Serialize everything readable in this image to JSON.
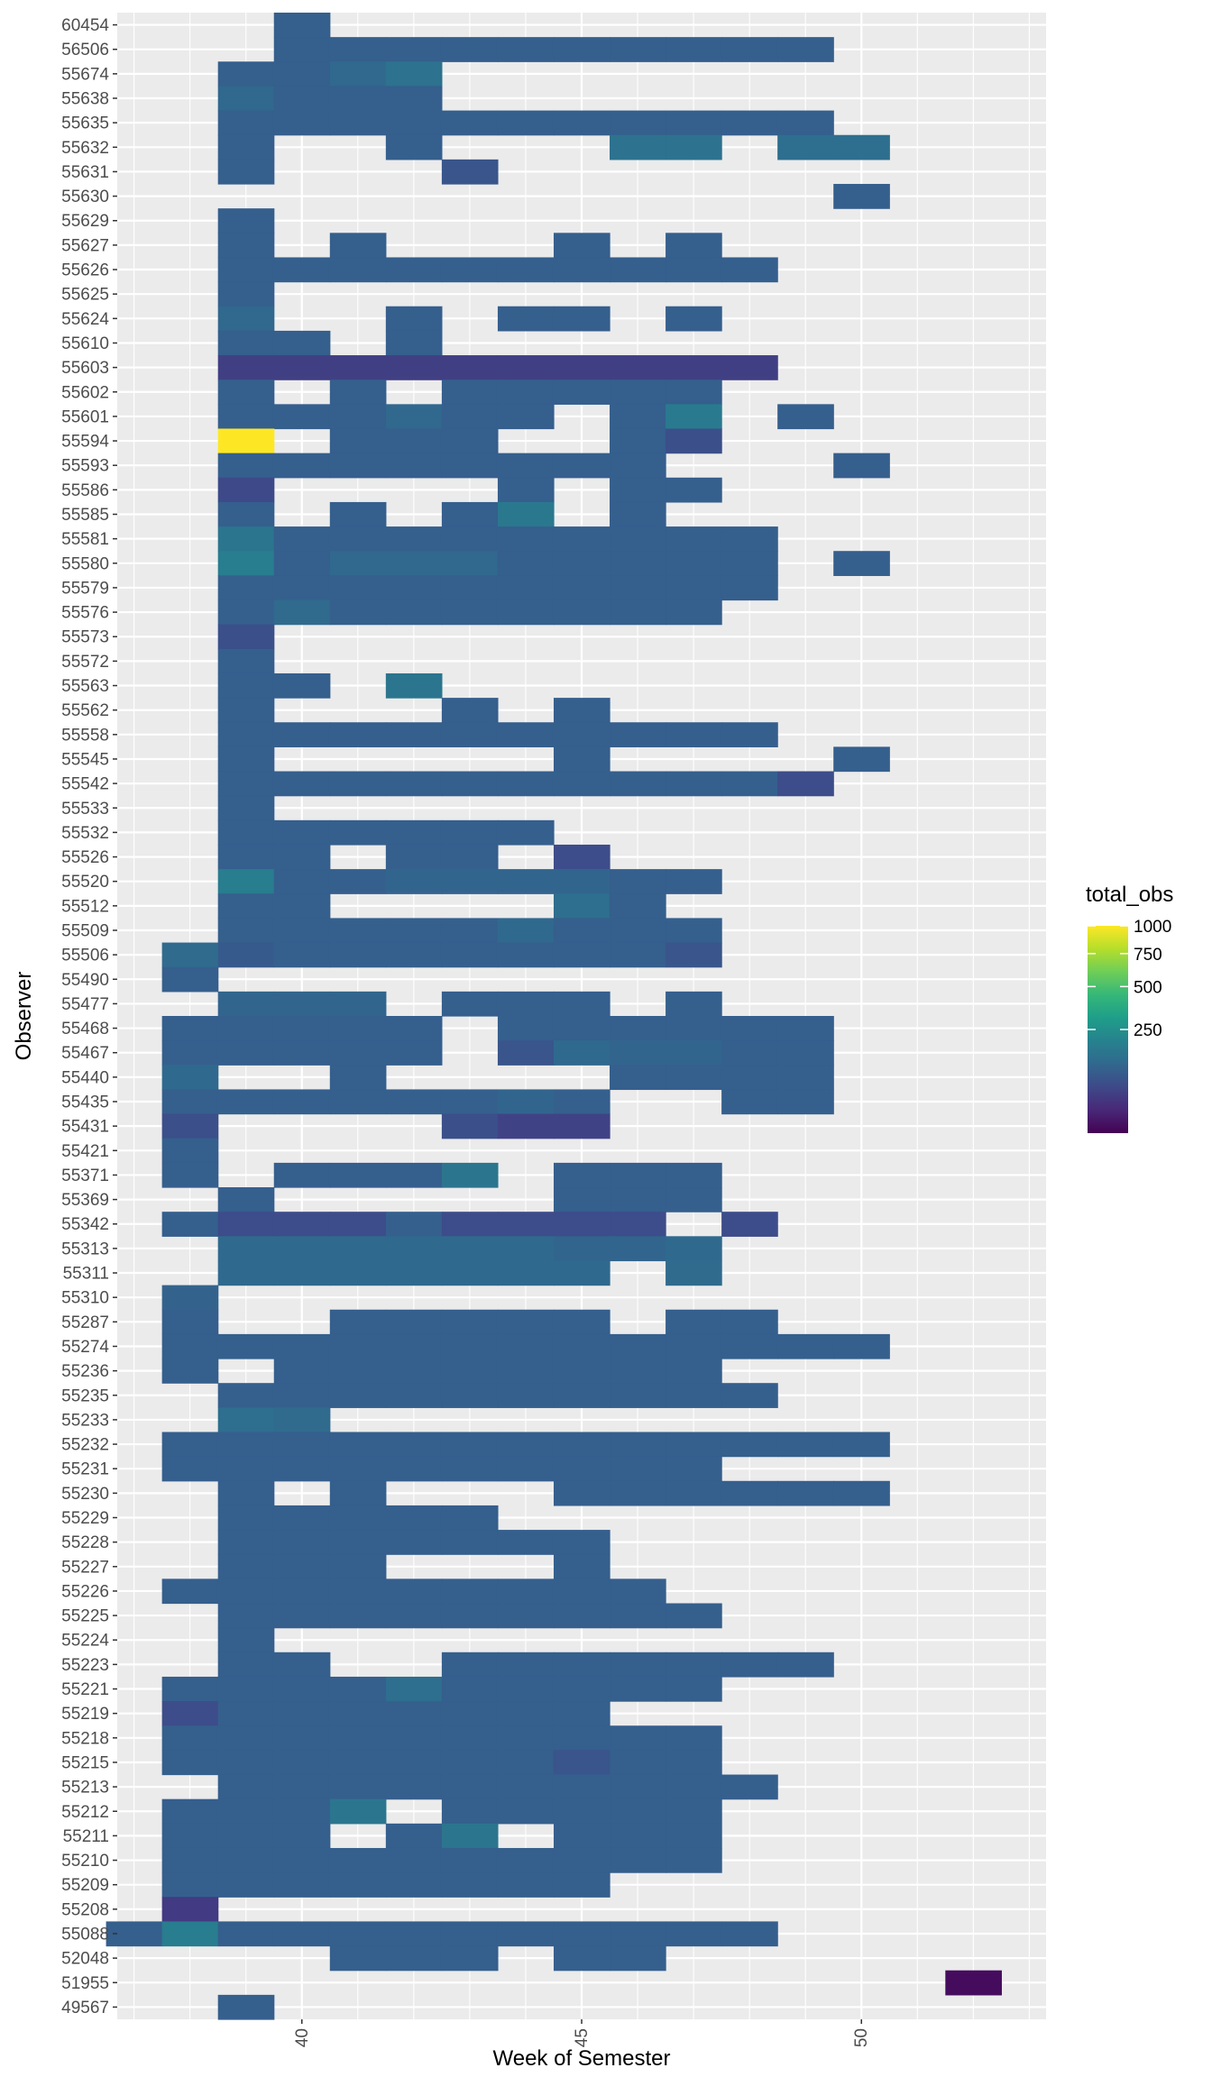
{
  "chart_data": {
    "type": "heatmap",
    "xlabel": "Week of Semester",
    "ylabel": "Observer",
    "x_ticks": [
      40,
      45,
      50
    ],
    "xlim": [
      36.7,
      53.3
    ],
    "colormap": "viridis",
    "legend": {
      "title": "total_obs",
      "position": "right",
      "ticks": [
        1000,
        750,
        500,
        250
      ],
      "colors": [
        "#fde725",
        "#b5de2b",
        "#6ece58",
        "#35b779",
        "#1f9e89",
        "#26828e",
        "#31688e",
        "#3e4989",
        "#482878",
        "#440154"
      ]
    },
    "observers": [
      "60454",
      "56506",
      "55674",
      "55638",
      "55635",
      "55632",
      "55631",
      "55630",
      "55629",
      "55627",
      "55626",
      "55625",
      "55624",
      "55610",
      "55603",
      "55602",
      "55601",
      "55594",
      "55593",
      "55586",
      "55585",
      "55581",
      "55580",
      "55579",
      "55576",
      "55573",
      "55572",
      "55563",
      "55562",
      "55558",
      "55545",
      "55542",
      "55533",
      "55532",
      "55526",
      "55520",
      "55512",
      "55509",
      "55506",
      "55490",
      "55477",
      "55468",
      "55467",
      "55440",
      "55435",
      "55431",
      "55421",
      "55371",
      "55369",
      "55342",
      "55313",
      "55311",
      "55310",
      "55287",
      "55274",
      "55236",
      "55235",
      "55233",
      "55232",
      "55231",
      "55230",
      "55229",
      "55228",
      "55227",
      "55226",
      "55225",
      "55224",
      "55223",
      "55221",
      "55219",
      "55218",
      "55215",
      "55213",
      "55212",
      "55211",
      "55210",
      "55209",
      "55208",
      "55088",
      "52048",
      "51955",
      "49567"
    ],
    "default_value": 90,
    "rows": {
      "60454": {
        "runs": [
          [
            40,
            40
          ]
        ]
      },
      "56506": {
        "runs": [
          [
            40,
            49
          ]
        ]
      },
      "55674": {
        "runs": [
          [
            39,
            42
          ]
        ],
        "cells": {
          "41": 110,
          "42": 140
        }
      },
      "55638": {
        "runs": [
          [
            39,
            42
          ]
        ],
        "cells": {
          "39": 110
        }
      },
      "55635": {
        "runs": [
          [
            39,
            49
          ]
        ]
      },
      "55632": {
        "runs": [
          [
            39,
            39
          ],
          [
            42,
            42
          ],
          [
            46,
            47
          ],
          [
            49,
            50
          ]
        ],
        "cells": {
          "46": 140,
          "47": 140,
          "49": 130,
          "50": 130
        }
      },
      "55631": {
        "runs": [
          [
            39,
            39
          ],
          [
            43,
            43
          ]
        ],
        "cells": {
          "43": 70
        }
      },
      "55630": {
        "runs": [
          [
            50,
            50
          ]
        ]
      },
      "55629": {
        "runs": [
          [
            39,
            39
          ]
        ]
      },
      "55627": {
        "runs": [
          [
            39,
            39
          ],
          [
            41,
            41
          ],
          [
            45,
            45
          ],
          [
            47,
            47
          ]
        ]
      },
      "55626": {
        "runs": [
          [
            39,
            48
          ]
        ]
      },
      "55625": {
        "runs": [
          [
            39,
            39
          ]
        ]
      },
      "55624": {
        "runs": [
          [
            39,
            39
          ],
          [
            42,
            42
          ],
          [
            44,
            45
          ],
          [
            47,
            47
          ]
        ],
        "cells": {
          "39": 110
        }
      },
      "55610": {
        "runs": [
          [
            39,
            40
          ],
          [
            42,
            42
          ]
        ]
      },
      "55603": {
        "runs": [
          [
            39,
            48
          ]
        ],
        "default": 35
      },
      "55602": {
        "runs": [
          [
            39,
            39
          ],
          [
            41,
            41
          ],
          [
            43,
            47
          ]
        ]
      },
      "55601": {
        "runs": [
          [
            39,
            44
          ],
          [
            46,
            47
          ],
          [
            49,
            49
          ]
        ],
        "cells": {
          "42": 110,
          "47": 170
        }
      },
      "55594": {
        "runs": [
          [
            39,
            39
          ],
          [
            41,
            43
          ],
          [
            46,
            47
          ]
        ],
        "cells": {
          "39": 1000,
          "47": 60
        }
      },
      "55593": {
        "runs": [
          [
            39,
            46
          ],
          [
            50,
            50
          ]
        ]
      },
      "55586": {
        "runs": [
          [
            39,
            39
          ],
          [
            44,
            44
          ],
          [
            46,
            47
          ]
        ],
        "cells": {
          "39": 50
        }
      },
      "55585": {
        "runs": [
          [
            39,
            39
          ],
          [
            41,
            41
          ],
          [
            43,
            44
          ],
          [
            46,
            46
          ]
        ],
        "cells": {
          "44": 160
        }
      },
      "55581": {
        "runs": [
          [
            39,
            48
          ]
        ],
        "cells": {
          "39": 150
        }
      },
      "55580": {
        "runs": [
          [
            39,
            48
          ],
          [
            50,
            50
          ]
        ],
        "cells": {
          "39": 180,
          "41": 110,
          "42": 110,
          "43": 110
        }
      },
      "55579": {
        "runs": [
          [
            39,
            48
          ]
        ]
      },
      "55576": {
        "runs": [
          [
            39,
            47
          ]
        ],
        "cells": {
          "40": 120
        }
      },
      "55573": {
        "runs": [
          [
            39,
            39
          ]
        ],
        "cells": {
          "39": 60
        }
      },
      "55572": {
        "runs": [
          [
            39,
            39
          ]
        ]
      },
      "55563": {
        "runs": [
          [
            39,
            40
          ],
          [
            42,
            42
          ]
        ],
        "cells": {
          "42": 150
        }
      },
      "55562": {
        "runs": [
          [
            39,
            39
          ],
          [
            43,
            43
          ],
          [
            45,
            45
          ]
        ]
      },
      "55558": {
        "runs": [
          [
            39,
            48
          ]
        ]
      },
      "55545": {
        "runs": [
          [
            39,
            39
          ],
          [
            45,
            45
          ],
          [
            50,
            50
          ]
        ]
      },
      "55542": {
        "runs": [
          [
            39,
            49
          ]
        ],
        "cells": {
          "49": 55
        }
      },
      "55533": {
        "runs": [
          [
            39,
            39
          ]
        ]
      },
      "55532": {
        "runs": [
          [
            39,
            44
          ]
        ]
      },
      "55526": {
        "runs": [
          [
            39,
            40
          ],
          [
            42,
            43
          ],
          [
            45,
            45
          ]
        ],
        "cells": {
          "45": 55
        }
      },
      "55520": {
        "runs": [
          [
            39,
            47
          ]
        ],
        "cells": {
          "39": 180,
          "42": 105,
          "43": 105,
          "44": 105,
          "45": 105
        }
      },
      "55512": {
        "runs": [
          [
            39,
            40
          ],
          [
            45,
            46
          ]
        ],
        "cells": {
          "45": 130
        }
      },
      "55509": {
        "runs": [
          [
            39,
            47
          ]
        ],
        "cells": {
          "44": 115
        }
      },
      "55506": {
        "runs": [
          [
            38,
            47
          ]
        ],
        "cells": {
          "38": 120,
          "39": 80,
          "47": 70
        }
      },
      "55490": {
        "runs": [
          [
            38,
            38
          ]
        ]
      },
      "55477": {
        "runs": [
          [
            39,
            41
          ],
          [
            43,
            45
          ],
          [
            47,
            47
          ]
        ],
        "cells": {
          "39": 105,
          "40": 105,
          "41": 105
        }
      },
      "55468": {
        "runs": [
          [
            38,
            42
          ],
          [
            44,
            49
          ]
        ]
      },
      "55467": {
        "runs": [
          [
            38,
            42
          ],
          [
            44,
            49
          ]
        ],
        "cells": {
          "44": 70,
          "45": 115,
          "46": 105,
          "47": 105
        }
      },
      "55440": {
        "runs": [
          [
            38,
            38
          ],
          [
            41,
            41
          ],
          [
            46,
            49
          ]
        ],
        "cells": {
          "38": 115
        }
      },
      "55435": {
        "runs": [
          [
            38,
            45
          ],
          [
            48,
            49
          ]
        ],
        "cells": {
          "44": 105
        }
      },
      "55431": {
        "runs": [
          [
            38,
            38
          ],
          [
            43,
            45
          ]
        ],
        "cells": {
          "38": 60,
          "43": 60,
          "44": 40,
          "45": 40
        }
      },
      "55421": {
        "runs": [
          [
            38,
            38
          ]
        ]
      },
      "55371": {
        "runs": [
          [
            38,
            38
          ],
          [
            40,
            43
          ],
          [
            45,
            47
          ]
        ],
        "cells": {
          "43": 150
        }
      },
      "55369": {
        "runs": [
          [
            39,
            39
          ],
          [
            45,
            47
          ]
        ]
      },
      "55342": {
        "runs": [
          [
            38,
            41
          ],
          [
            42,
            46
          ],
          [
            48,
            48
          ]
        ],
        "cells": {
          "39": 55,
          "40": 55,
          "41": 55,
          "43": 55,
          "44": 55,
          "45": 55,
          "46": 55,
          "48": 55
        }
      },
      "55313": {
        "runs": [
          [
            39,
            47
          ]
        ],
        "cells": {
          "39": 115,
          "40": 115,
          "41": 115,
          "42": 115,
          "43": 115,
          "44": 115,
          "45": 105,
          "46": 105,
          "47": 115
        }
      },
      "55311": {
        "runs": [
          [
            39,
            45
          ],
          [
            47,
            47
          ]
        ],
        "cells": {
          "39": 115,
          "40": 115,
          "41": 115,
          "42": 115,
          "43": 115,
          "44": 115,
          "45": 115,
          "47": 120
        }
      },
      "55310": {
        "runs": [
          [
            38,
            38
          ]
        ],
        "cells": {
          "38": 100
        }
      },
      "55287": {
        "runs": [
          [
            38,
            38
          ],
          [
            41,
            45
          ],
          [
            47,
            48
          ]
        ]
      },
      "55274": {
        "runs": [
          [
            38,
            50
          ]
        ]
      },
      "55236": {
        "runs": [
          [
            38,
            38
          ],
          [
            40,
            47
          ]
        ]
      },
      "55235": {
        "runs": [
          [
            39,
            48
          ]
        ]
      },
      "55233": {
        "runs": [
          [
            39,
            40
          ]
        ],
        "cells": {
          "39": 130,
          "40": 120
        }
      },
      "55232": {
        "runs": [
          [
            38,
            50
          ]
        ]
      },
      "55231": {
        "runs": [
          [
            38,
            47
          ]
        ]
      },
      "55230": {
        "runs": [
          [
            39,
            39
          ],
          [
            41,
            41
          ],
          [
            45,
            50
          ]
        ]
      },
      "55229": {
        "runs": [
          [
            39,
            43
          ]
        ]
      },
      "55228": {
        "runs": [
          [
            39,
            45
          ]
        ]
      },
      "55227": {
        "runs": [
          [
            39,
            41
          ],
          [
            45,
            45
          ]
        ]
      },
      "55226": {
        "runs": [
          [
            38,
            46
          ]
        ]
      },
      "55225": {
        "runs": [
          [
            39,
            47
          ]
        ]
      },
      "55224": {
        "runs": [
          [
            39,
            39
          ]
        ]
      },
      "55223": {
        "runs": [
          [
            39,
            40
          ],
          [
            43,
            49
          ]
        ]
      },
      "55221": {
        "runs": [
          [
            38,
            47
          ]
        ],
        "cells": {
          "42": 130
        }
      },
      "55219": {
        "runs": [
          [
            38,
            45
          ]
        ],
        "cells": {
          "38": 55
        }
      },
      "55218": {
        "runs": [
          [
            38,
            47
          ]
        ]
      },
      "55215": {
        "runs": [
          [
            38,
            47
          ]
        ],
        "cells": {
          "45": 70
        }
      },
      "55213": {
        "runs": [
          [
            39,
            48
          ]
        ]
      },
      "55212": {
        "runs": [
          [
            38,
            40
          ],
          [
            41,
            41
          ],
          [
            43,
            47
          ]
        ],
        "cells": {
          "41": 150
        }
      },
      "55211": {
        "runs": [
          [
            38,
            40
          ],
          [
            42,
            43
          ],
          [
            45,
            47
          ]
        ],
        "cells": {
          "43": 150
        }
      },
      "55210": {
        "runs": [
          [
            38,
            47
          ]
        ]
      },
      "55209": {
        "runs": [
          [
            38,
            45
          ]
        ]
      },
      "55208": {
        "runs": [
          [
            38,
            38
          ]
        ],
        "cells": {
          "38": 30
        }
      },
      "55088": {
        "runs": [
          [
            37,
            48
          ]
        ],
        "cells": {
          "38": 180
        }
      },
      "52048": {
        "runs": [
          [
            41,
            43
          ],
          [
            45,
            46
          ]
        ]
      },
      "51955": {
        "runs": [
          [
            52,
            52
          ]
        ],
        "cells": {
          "52": 1
        }
      },
      "49567": {
        "runs": [
          [
            39,
            39
          ]
        ]
      }
    }
  }
}
